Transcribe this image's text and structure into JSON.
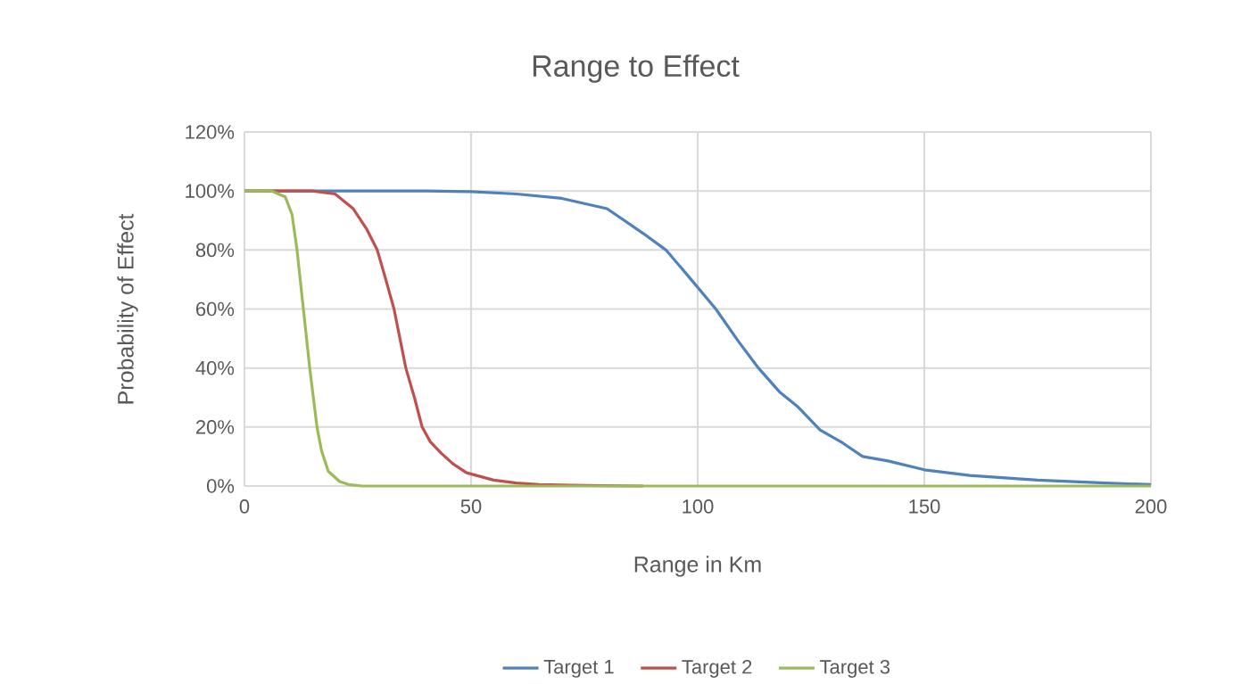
{
  "chart_data": {
    "type": "line",
    "title": "Range to Effect",
    "xlabel": "Range in Km",
    "ylabel": "Probability of Effect",
    "xlim": [
      0,
      200
    ],
    "xticks": [
      0,
      50,
      100,
      150,
      200
    ],
    "ylim": [
      0,
      120
    ],
    "yticks": [
      {
        "value": 0,
        "label": "0%"
      },
      {
        "value": 20,
        "label": "20%"
      },
      {
        "value": 40,
        "label": "40%"
      },
      {
        "value": 60,
        "label": "60%"
      },
      {
        "value": 80,
        "label": "80%"
      },
      {
        "value": 100,
        "label": "100%"
      },
      {
        "value": 120,
        "label": "120%"
      }
    ],
    "grid": true,
    "legend": "bottom",
    "marker": "none",
    "line_style": "solid",
    "series": [
      {
        "name": "Target 1",
        "color": "#4f81bd",
        "x": [
          0,
          20,
          40,
          50,
          60,
          70,
          80,
          88,
          93,
          98,
          104,
          109,
          113.4,
          118,
          122,
          127,
          132,
          136.4,
          142,
          150,
          160,
          175,
          190,
          200
        ],
        "values": [
          100,
          100,
          100,
          99.8,
          99,
          97.5,
          94,
          85.6,
          80,
          71,
          60,
          49,
          40,
          32,
          27,
          19,
          14.6,
          10,
          8.5,
          5.5,
          3.6,
          2,
          1,
          0.5
        ]
      },
      {
        "name": "Target 2",
        "color": "#c0504d",
        "x": [
          0,
          15,
          20,
          24,
          27,
          29.3,
          31,
          33,
          35.6,
          37.5,
          39.2,
          41,
          43.5,
          46,
          49,
          55,
          60,
          65,
          75,
          88
        ],
        "values": [
          100,
          100,
          99,
          94,
          87,
          80,
          71,
          60,
          40,
          30,
          20,
          15,
          11,
          7.5,
          4.5,
          2,
          1,
          0.5,
          0.2,
          0
        ]
      },
      {
        "name": "Target 3",
        "color": "#9bbb59",
        "x": [
          0,
          6,
          9,
          10.5,
          11.6,
          13,
          14.4,
          16,
          17,
          18.5,
          21,
          23,
          26,
          200
        ],
        "values": [
          100,
          100,
          98,
          92,
          80,
          60,
          40,
          20,
          12,
          5,
          1.5,
          0.5,
          0,
          0
        ]
      }
    ]
  }
}
